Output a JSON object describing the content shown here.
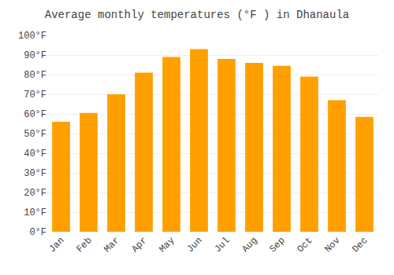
{
  "chart_data": {
    "type": "bar",
    "title": "Average monthly temperatures (°F ) in Dhanaula",
    "categories": [
      "Jan",
      "Feb",
      "Mar",
      "Apr",
      "May",
      "Jun",
      "Jul",
      "Aug",
      "Sep",
      "Oct",
      "Nov",
      "Dec"
    ],
    "values": [
      56,
      60.5,
      70,
      81,
      89,
      93,
      88,
      86,
      84.5,
      79,
      67,
      58.5
    ],
    "color": "#FFA000",
    "ylim": [
      0,
      100
    ],
    "yticks": [
      {
        "value": 0,
        "label": "0°F"
      },
      {
        "value": 10,
        "label": "10°F"
      },
      {
        "value": 20,
        "label": "20°F"
      },
      {
        "value": 30,
        "label": "30°F"
      },
      {
        "value": 40,
        "label": "40°F"
      },
      {
        "value": 50,
        "label": "50°F"
      },
      {
        "value": 60,
        "label": "60°F"
      },
      {
        "value": 70,
        "label": "70°F"
      },
      {
        "value": 80,
        "label": "80°F"
      },
      {
        "value": 90,
        "label": "90°F"
      },
      {
        "value": 100,
        "label": "100°F"
      }
    ],
    "grid": true
  }
}
